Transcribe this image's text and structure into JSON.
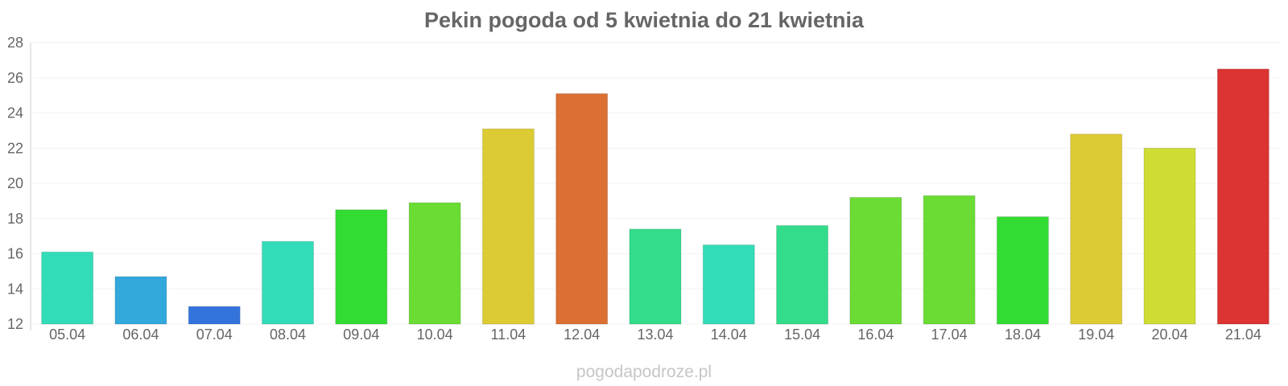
{
  "chart_data": {
    "type": "bar",
    "title": "Pekin pogoda od 5 kwietnia do 21 kwietnia",
    "xlabel": "",
    "ylabel": "",
    "ylim": [
      12,
      28
    ],
    "yticks": [
      12,
      14,
      16,
      18,
      20,
      22,
      24,
      26,
      28
    ],
    "grid": true,
    "categories": [
      "05.04",
      "06.04",
      "07.04",
      "08.04",
      "09.04",
      "10.04",
      "11.04",
      "12.04",
      "13.04",
      "14.04",
      "15.04",
      "16.04",
      "17.04",
      "18.04",
      "19.04",
      "20.04",
      "21.04"
    ],
    "values": [
      16.1,
      14.7,
      13.0,
      16.7,
      18.5,
      18.9,
      23.1,
      25.1,
      17.4,
      16.5,
      17.6,
      19.2,
      19.3,
      18.1,
      22.8,
      22.0,
      26.5
    ],
    "colors": [
      "#33dcb8",
      "#33a8dc",
      "#3373dc",
      "#33dcb8",
      "#33dc33",
      "#6adc33",
      "#dccb33",
      "#dc6f33",
      "#33dc8a",
      "#33dcb8",
      "#33dc8a",
      "#6adc33",
      "#6adc33",
      "#33dc33",
      "#dccb33",
      "#cfdc33",
      "#dc3333"
    ]
  },
  "footer": {
    "watermark": "pogodapodroze.pl"
  }
}
